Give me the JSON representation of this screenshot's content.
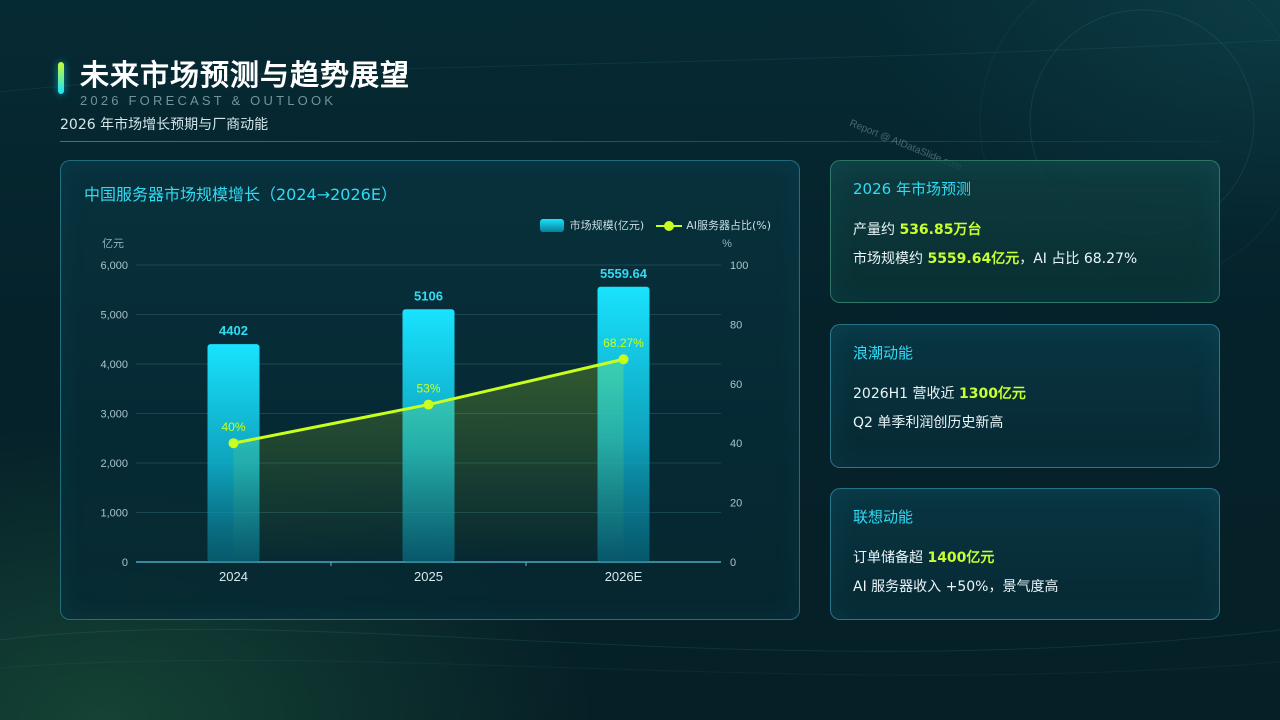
{
  "header": {
    "title": "未来市场预测与趋势展望",
    "subtitle_en": "2026 FORECAST & OUTLOOK",
    "subtitle": "2026 年市场增长预期与厂商动能",
    "watermark": "Report @ AIDataSlide.com"
  },
  "chart_data": {
    "type": "bar",
    "title": "中国服务器市场规模增长（2024→2026E）",
    "categories": [
      "2024",
      "2025",
      "2026E"
    ],
    "series": [
      {
        "name": "市场规模(亿元)",
        "type": "bar",
        "axis": "left",
        "values": [
          4402,
          5106,
          5559.64
        ],
        "labels": [
          "4402",
          "5106",
          "5559.64"
        ]
      },
      {
        "name": "AI服务器占比(%)",
        "type": "line",
        "axis": "right",
        "values": [
          40,
          53,
          68.27
        ],
        "labels": [
          "40%",
          "53%",
          "68.27%"
        ]
      }
    ],
    "y_left": {
      "unit": "亿元",
      "min": 0,
      "max": 6000,
      "ticks": [
        "0",
        "1,000",
        "2,000",
        "3,000",
        "4,000",
        "5,000",
        "6,000"
      ]
    },
    "y_right": {
      "unit": "%",
      "min": 0,
      "max": 100,
      "ticks": [
        "0",
        "20",
        "40",
        "60",
        "80",
        "100"
      ]
    },
    "legend_position": "top-right",
    "grid": true,
    "colors": {
      "bar_top": "#19e3ff",
      "bar_bottom": "#087e98",
      "line": "#c8ff1e",
      "bar_label": "#2fdcf5"
    }
  },
  "cards": [
    {
      "title": "2026 年市场预测",
      "lines": [
        [
          "产量约 ",
          "536.85万台",
          ""
        ],
        [
          "市场规模约 ",
          "5559.64亿元",
          "，AI 占比 68.27%"
        ]
      ]
    },
    {
      "title": "浪潮动能",
      "lines": [
        [
          "2026H1 营收近 ",
          "1300亿元",
          ""
        ],
        [
          "Q2 单季利润创历史新高",
          "",
          ""
        ]
      ]
    },
    {
      "title": "联想动能",
      "lines": [
        [
          "订单储备超 ",
          "1400亿元",
          ""
        ],
        [
          "AI 服务器收入 +50%，景气度高",
          "",
          ""
        ]
      ]
    }
  ],
  "colors": {
    "accent": "#2fdcf5",
    "highlight": "#c8ff2e",
    "background": "#062a33"
  }
}
